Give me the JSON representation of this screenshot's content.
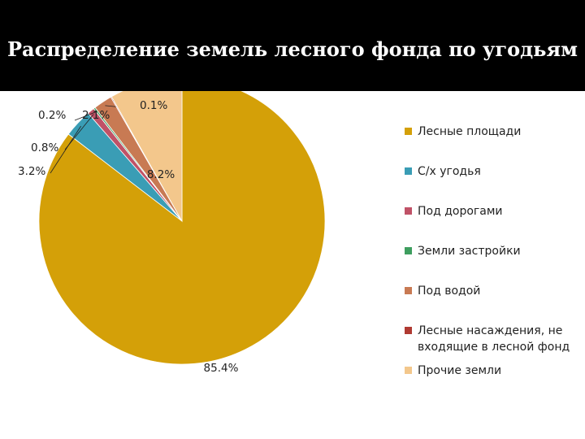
{
  "title": "Распределение земель лесного фонда по угодьям",
  "chart_data": {
    "type": "pie",
    "title": "Распределение земель лесного фонда по угодьям",
    "start_angle_deg": 90,
    "direction": "clockwise",
    "legend_position": "right",
    "slices": [
      {
        "name": "Лесные площади",
        "value": 85.4,
        "label": "85.4%",
        "color": "#D4A008"
      },
      {
        "name": "С/х угодья",
        "value": 3.2,
        "label": "3.2%",
        "color": "#3A9DB5"
      },
      {
        "name": "Под дорогами",
        "value": 0.8,
        "label": "0.8%",
        "color": "#C05267"
      },
      {
        "name": "Земли застройки",
        "value": 0.2,
        "label": "0.2%",
        "color": "#3E9E5F"
      },
      {
        "name": "Под водой",
        "value": 2.1,
        "label": "2.1%",
        "color": "#C87A53"
      },
      {
        "name": "Лесные насаждения, не входящие в лесной фонд",
        "value": 0.1,
        "label": "0.1%",
        "color": "#B03A32"
      },
      {
        "name": "Прочие земли",
        "value": 8.2,
        "label": "8.2%",
        "color": "#F3C78C"
      }
    ]
  }
}
